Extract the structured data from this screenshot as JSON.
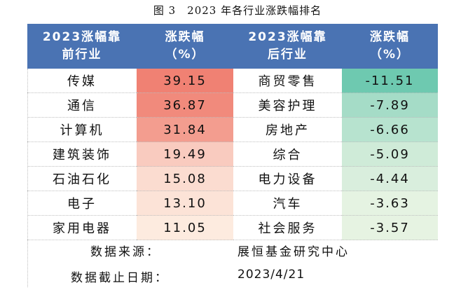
{
  "title": "图 3　2023 年各行业涨跌幅排名",
  "table": {
    "headers": [
      "2023涨幅靠\n前行业",
      "涨跌幅\n（%）",
      "2023涨幅靠\n后行业",
      "涨跌幅\n（%）"
    ],
    "rows": [
      {
        "top": "传媒",
        "top_val": "39.15",
        "bottom": "商贸零售",
        "bottom_val": "-11.51"
      },
      {
        "top": "通信",
        "top_val": "36.87",
        "bottom": "美容护理",
        "bottom_val": "-7.89"
      },
      {
        "top": "计算机",
        "top_val": "31.84",
        "bottom": "房地产",
        "bottom_val": "-6.66"
      },
      {
        "top": "建筑装饰",
        "top_val": "19.49",
        "bottom": "综合",
        "bottom_val": "-5.09"
      },
      {
        "top": "石油石化",
        "top_val": "15.08",
        "bottom": "电力设备",
        "bottom_val": "-4.44"
      },
      {
        "top": "电子",
        "top_val": "13.10",
        "bottom": "汽车",
        "bottom_val": "-3.63"
      },
      {
        "top": "家用电器",
        "top_val": "11.05",
        "bottom": "社会服务",
        "bottom_val": "-3.57"
      }
    ]
  },
  "source": {
    "label": "数据来源：",
    "value": "展恒基金研究中心"
  },
  "cutoff": {
    "label": "数据截止日期：",
    "value": "2023/4/21"
  },
  "colors": {
    "header_bg": "#4a73b3",
    "positive_max": "#f08173",
    "positive_min": "#fdebdf",
    "negative_max": "#6ec9b0",
    "negative_min": "#e6f3e2"
  },
  "chart_data": {
    "type": "table",
    "columns": [
      "2023涨幅靠前行业",
      "涨跌幅（%）",
      "2023涨幅靠后行业",
      "涨跌幅（%）"
    ],
    "top_industries": [
      "传媒",
      "通信",
      "计算机",
      "建筑装饰",
      "石油石化",
      "电子",
      "家用电器"
    ],
    "top_values": [
      39.15,
      36.87,
      31.84,
      19.49,
      15.08,
      13.1,
      11.05
    ],
    "bottom_industries": [
      "商贸零售",
      "美容护理",
      "房地产",
      "综合",
      "电力设备",
      "汽车",
      "社会服务"
    ],
    "bottom_values": [
      -11.51,
      -7.89,
      -6.66,
      -5.09,
      -4.44,
      -3.63,
      -3.57
    ]
  }
}
